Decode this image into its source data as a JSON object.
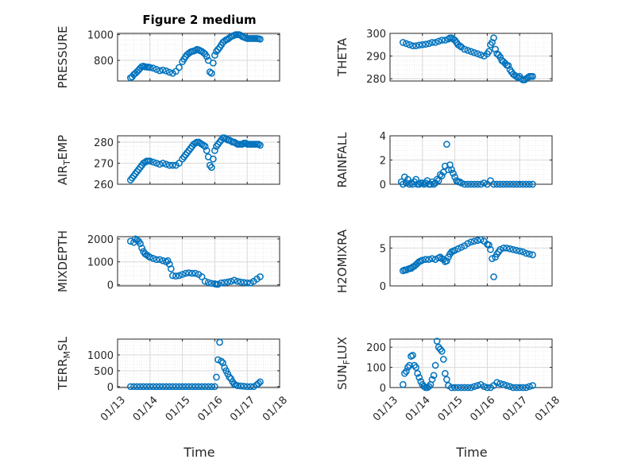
{
  "figure": {
    "title": "Figure 2 medium",
    "marker_color": "#0072BD"
  },
  "x_axis": {
    "label": "Time",
    "ticks": [
      13,
      14,
      15,
      16,
      17,
      18
    ],
    "tick_labels": [
      "01/13",
      "01/14",
      "01/15",
      "01/16",
      "01/17",
      "01/18"
    ]
  },
  "chart_data": [
    {
      "type": "scatter",
      "ylabel": "PRESSURE",
      "ylim": [
        640,
        1010
      ],
      "yticks": [
        800,
        1000
      ],
      "x": [
        13.4,
        13.45,
        13.5,
        13.55,
        13.6,
        13.65,
        13.7,
        13.75,
        13.8,
        13.85,
        13.9,
        13.95,
        14.0,
        14.1,
        14.2,
        14.3,
        14.4,
        14.5,
        14.6,
        14.7,
        14.8,
        14.9,
        15.0,
        15.05,
        15.1,
        15.15,
        15.2,
        15.25,
        15.3,
        15.35,
        15.4,
        15.45,
        15.5,
        15.55,
        15.6,
        15.65,
        15.7,
        15.75,
        15.8,
        15.85,
        15.9,
        15.95,
        16.0,
        16.05,
        16.1,
        16.15,
        16.2,
        16.25,
        16.3,
        16.35,
        16.4,
        16.45,
        16.5,
        16.55,
        16.6,
        16.65,
        16.7,
        16.75,
        16.8,
        16.85,
        16.9,
        16.95,
        17.0,
        17.05,
        17.1,
        17.15,
        17.2,
        17.25,
        17.3,
        17.35,
        17.4
      ],
      "y": [
        665,
        672,
        690,
        700,
        712,
        725,
        740,
        752,
        755,
        750,
        748,
        748,
        745,
        740,
        730,
        720,
        725,
        718,
        708,
        700,
        715,
        745,
        790,
        810,
        830,
        845,
        855,
        865,
        870,
        873,
        878,
        885,
        882,
        875,
        870,
        860,
        850,
        830,
        800,
        710,
        700,
        780,
        840,
        870,
        885,
        900,
        920,
        940,
        950,
        960,
        965,
        975,
        985,
        990,
        995,
        1000,
        1000,
        1000,
        995,
        985,
        980,
        975,
        970,
        970,
        970,
        970,
        970,
        970,
        970,
        968,
        965
      ],
      "grid": true
    },
    {
      "type": "scatter",
      "ylabel": "THETA",
      "ylim": [
        279,
        300
      ],
      "yticks": [
        280,
        290,
        300
      ],
      "x": [
        13.4,
        13.5,
        13.6,
        13.7,
        13.8,
        13.9,
        14.0,
        14.1,
        14.2,
        14.3,
        14.4,
        14.5,
        14.6,
        14.7,
        14.8,
        14.85,
        14.9,
        14.95,
        15.0,
        15.05,
        15.1,
        15.15,
        15.2,
        15.3,
        15.4,
        15.5,
        15.6,
        15.7,
        15.8,
        15.9,
        16.0,
        16.05,
        16.1,
        16.15,
        16.2,
        16.25,
        16.3,
        16.35,
        16.4,
        16.45,
        16.5,
        16.55,
        16.6,
        16.65,
        16.7,
        16.75,
        16.8,
        16.85,
        16.9,
        16.95,
        17.0,
        17.05,
        17.1,
        17.15,
        17.2,
        17.25,
        17.3,
        17.35,
        17.4
      ],
      "y": [
        296,
        295.5,
        295,
        294.5,
        294.5,
        294.8,
        295,
        295.2,
        295.5,
        296,
        296,
        296.5,
        297,
        297,
        297.5,
        298,
        298,
        297.5,
        297,
        296,
        295,
        294.5,
        294,
        293,
        292.5,
        292,
        291.5,
        291,
        290.5,
        290,
        291,
        292,
        295,
        296,
        298,
        293,
        291,
        290.5,
        289.5,
        288,
        287.5,
        286.8,
        286,
        285.8,
        284,
        283,
        282,
        281.5,
        281,
        280.5,
        281,
        280,
        279.5,
        279.5,
        280,
        280.5,
        281,
        281,
        281
      ],
      "grid": true
    },
    {
      "type": "scatter",
      "ylabel": "AIR_TEMP",
      "ylim": [
        260,
        283
      ],
      "yticks": [
        260,
        270,
        280
      ],
      "x": [
        13.4,
        13.45,
        13.5,
        13.55,
        13.6,
        13.65,
        13.7,
        13.75,
        13.8,
        13.85,
        13.9,
        13.95,
        14.0,
        14.1,
        14.2,
        14.3,
        14.4,
        14.5,
        14.6,
        14.7,
        14.8,
        14.9,
        15.0,
        15.05,
        15.1,
        15.15,
        15.2,
        15.25,
        15.3,
        15.35,
        15.4,
        15.45,
        15.5,
        15.55,
        15.6,
        15.65,
        15.7,
        15.75,
        15.8,
        15.85,
        15.9,
        15.95,
        16.0,
        16.05,
        16.1,
        16.15,
        16.2,
        16.25,
        16.3,
        16.35,
        16.4,
        16.45,
        16.5,
        16.55,
        16.6,
        16.65,
        16.7,
        16.75,
        16.8,
        16.85,
        16.9,
        16.95,
        17.0,
        17.05,
        17.1,
        17.15,
        17.2,
        17.25,
        17.3,
        17.35,
        17.4
      ],
      "y": [
        262,
        263,
        264,
        265,
        266,
        267,
        268,
        269,
        270,
        270.5,
        271,
        271,
        271,
        270.5,
        270,
        269.5,
        270,
        269.5,
        269,
        269,
        269,
        270,
        272,
        273,
        274,
        275,
        276,
        277,
        278,
        279,
        279.5,
        280,
        280,
        279.5,
        279,
        278.5,
        278,
        276,
        273,
        269,
        268,
        272,
        276,
        278,
        279,
        280,
        281,
        282,
        282,
        281.5,
        281,
        281,
        280.5,
        280,
        280,
        279.5,
        279,
        279,
        279,
        279,
        279.5,
        279.5,
        279,
        279,
        279,
        279,
        279,
        279,
        279,
        279,
        278.5
      ],
      "grid": true
    },
    {
      "type": "scatter",
      "ylabel": "RAINFALL",
      "ylim": [
        0,
        4
      ],
      "yticks": [
        0,
        2,
        4
      ],
      "x": [
        13.35,
        13.4,
        13.45,
        13.5,
        13.55,
        13.6,
        13.65,
        13.7,
        13.75,
        13.8,
        13.85,
        13.9,
        13.95,
        14.0,
        14.05,
        14.1,
        14.15,
        14.2,
        14.25,
        14.3,
        14.35,
        14.4,
        14.45,
        14.5,
        14.55,
        14.6,
        14.65,
        14.7,
        14.75,
        14.8,
        14.85,
        14.9,
        14.95,
        15.0,
        15.05,
        15.1,
        15.15,
        15.2,
        15.3,
        15.4,
        15.5,
        15.6,
        15.7,
        15.8,
        15.9,
        16.0,
        16.1,
        16.2,
        16.3,
        16.4,
        16.5,
        16.6,
        16.7,
        16.8,
        16.9,
        17.0,
        17.1,
        17.2,
        17.3,
        17.4
      ],
      "y": [
        0.2,
        0,
        0.6,
        0.1,
        0.4,
        0,
        0.1,
        0,
        0.2,
        0.4,
        0,
        0,
        0.1,
        0.1,
        0,
        0.1,
        0.3,
        0,
        0,
        0.2,
        0,
        0.1,
        0.4,
        0.3,
        0.8,
        0.7,
        1,
        1.5,
        3.3,
        1.2,
        1.6,
        1.2,
        0.9,
        0.6,
        0.3,
        0.2,
        0.2,
        0.1,
        0,
        0,
        0,
        0,
        0,
        0,
        0.1,
        0,
        0.3,
        0,
        0,
        0,
        0,
        0,
        0,
        0,
        0,
        0,
        0,
        0,
        0,
        0
      ],
      "grid": true
    },
    {
      "type": "scatter",
      "ylabel": "MIXDEPTH",
      "ylim": [
        -50,
        2100
      ],
      "yticks": [
        0,
        1000,
        2000
      ],
      "x": [
        13.4,
        13.5,
        13.55,
        13.6,
        13.65,
        13.7,
        13.75,
        13.8,
        13.85,
        13.9,
        13.95,
        14.0,
        14.1,
        14.2,
        14.3,
        14.4,
        14.5,
        14.55,
        14.6,
        14.65,
        14.7,
        14.8,
        14.9,
        15.0,
        15.1,
        15.2,
        15.3,
        15.4,
        15.5,
        15.6,
        15.7,
        15.8,
        15.9,
        16.0,
        16.05,
        16.1,
        16.2,
        16.3,
        16.4,
        16.5,
        16.6,
        16.7,
        16.8,
        16.9,
        17.0,
        17.1,
        17.2,
        17.3,
        17.4
      ],
      "y": [
        1900,
        1850,
        2000,
        1950,
        1900,
        1800,
        1600,
        1450,
        1350,
        1300,
        1250,
        1200,
        1150,
        1100,
        1100,
        1050,
        1000,
        1050,
        900,
        700,
        400,
        380,
        400,
        450,
        500,
        520,
        500,
        500,
        450,
        350,
        150,
        100,
        60,
        40,
        20,
        20,
        80,
        100,
        120,
        150,
        200,
        150,
        120,
        100,
        80,
        80,
        150,
        250,
        350
      ],
      "grid": true
    },
    {
      "type": "scatter",
      "ylabel": "H2OMIXRA",
      "ylim": [
        0,
        6.5
      ],
      "yticks": [
        0,
        5
      ],
      "x": [
        13.4,
        13.45,
        13.5,
        13.55,
        13.6,
        13.65,
        13.7,
        13.75,
        13.8,
        13.85,
        13.9,
        13.95,
        14.0,
        14.1,
        14.2,
        14.3,
        14.4,
        14.5,
        14.55,
        14.6,
        14.65,
        14.7,
        14.75,
        14.8,
        14.85,
        14.9,
        14.95,
        15.0,
        15.1,
        15.2,
        15.3,
        15.4,
        15.5,
        15.6,
        15.7,
        15.8,
        15.9,
        16.0,
        16.05,
        16.1,
        16.15,
        16.2,
        16.25,
        16.3,
        16.35,
        16.4,
        16.5,
        16.6,
        16.7,
        16.8,
        16.9,
        17.0,
        17.1,
        17.2,
        17.3,
        17.4
      ],
      "y": [
        2,
        2.1,
        2.1,
        2.2,
        2.3,
        2.3,
        2.5,
        2.6,
        2.8,
        3,
        3.2,
        3.3,
        3.4,
        3.5,
        3.5,
        3.6,
        3.5,
        3.7,
        3.8,
        3.6,
        3.5,
        3.2,
        3.3,
        3.8,
        4.2,
        4.5,
        4.6,
        4.7,
        4.9,
        5.1,
        5.3,
        5.6,
        5.8,
        5.9,
        6,
        6.1,
        5.9,
        5.5,
        5.4,
        4.8,
        3.6,
        1.2,
        3.8,
        4.2,
        4.5,
        4.8,
        5,
        5,
        4.9,
        4.8,
        4.7,
        4.6,
        4.5,
        4.3,
        4.2,
        4.1
      ],
      "grid": true
    },
    {
      "type": "scatter",
      "ylabel": "TERR_MSL",
      "ylim": [
        -30,
        1500
      ],
      "yticks": [
        0,
        500,
        1000
      ],
      "x": [
        13.4,
        13.5,
        13.6,
        13.7,
        13.8,
        13.9,
        14.0,
        14.1,
        14.2,
        14.3,
        14.4,
        14.5,
        14.6,
        14.7,
        14.8,
        14.9,
        15.0,
        15.1,
        15.2,
        15.3,
        15.4,
        15.5,
        15.6,
        15.7,
        15.8,
        15.9,
        16.0,
        16.05,
        16.1,
        16.15,
        16.2,
        16.25,
        16.3,
        16.35,
        16.4,
        16.45,
        16.5,
        16.55,
        16.6,
        16.65,
        16.7,
        16.8,
        16.9,
        17.0,
        17.1,
        17.2,
        17.3,
        17.35,
        17.4
      ],
      "y": [
        0,
        0,
        0,
        0,
        0,
        0,
        0,
        0,
        0,
        0,
        0,
        0,
        0,
        0,
        0,
        0,
        0,
        0,
        0,
        0,
        0,
        0,
        0,
        0,
        0,
        0,
        0,
        300,
        850,
        1400,
        800,
        750,
        600,
        500,
        400,
        300,
        250,
        150,
        80,
        50,
        30,
        20,
        10,
        0,
        0,
        0,
        60,
        100,
        150
      ],
      "grid": true
    },
    {
      "type": "scatter",
      "ylabel": "SUN_FLUX",
      "ylim": [
        0,
        240
      ],
      "yticks": [
        0,
        100,
        200
      ],
      "x": [
        13.4,
        13.45,
        13.5,
        13.55,
        13.6,
        13.65,
        13.7,
        13.75,
        13.8,
        13.85,
        13.9,
        13.95,
        14.0,
        14.05,
        14.1,
        14.15,
        14.2,
        14.25,
        14.3,
        14.35,
        14.4,
        14.45,
        14.5,
        14.55,
        14.6,
        14.65,
        14.7,
        14.75,
        14.8,
        14.9,
        15.0,
        15.1,
        15.2,
        15.3,
        15.4,
        15.5,
        15.6,
        15.7,
        15.8,
        15.9,
        16.0,
        16.1,
        16.2,
        16.3,
        16.4,
        16.5,
        16.6,
        16.7,
        16.8,
        16.9,
        17.0,
        17.1,
        17.2,
        17.3,
        17.4
      ],
      "y": [
        15,
        70,
        80,
        100,
        110,
        155,
        160,
        110,
        100,
        70,
        50,
        30,
        15,
        5,
        0,
        0,
        5,
        15,
        40,
        60,
        110,
        230,
        200,
        190,
        180,
        140,
        70,
        40,
        10,
        0,
        0,
        0,
        0,
        0,
        0,
        0,
        5,
        10,
        15,
        5,
        0,
        0,
        10,
        25,
        20,
        15,
        10,
        5,
        0,
        0,
        0,
        0,
        0,
        5,
        10
      ],
      "grid": true
    }
  ]
}
